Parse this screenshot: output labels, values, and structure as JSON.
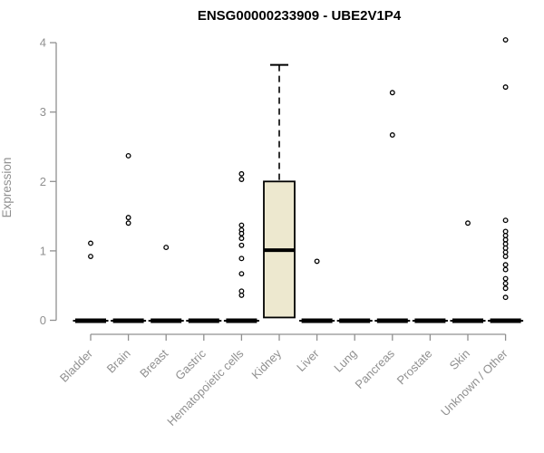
{
  "chart_data": {
    "type": "boxplot",
    "title": "ENSG00000233909 - UBE2V1P4",
    "ylabel": "Expression",
    "xlabel": "",
    "ylim": [
      0,
      4
    ],
    "yticks": [
      0,
      1,
      2,
      3,
      4
    ],
    "grid": false,
    "legend": "none",
    "categories": [
      "Bladder",
      "Brain",
      "Breast",
      "Gastric",
      "Hematopoietic cells",
      "Kidney",
      "Liver",
      "Lung",
      "Pancreas",
      "Prostate",
      "Skin",
      "Unknown / Other"
    ],
    "boxes": [
      {
        "category": "Bladder",
        "q1": 0,
        "median": 0,
        "q3": 0,
        "whisker_low": 0,
        "whisker_high": 0,
        "outliers": [
          1.11,
          0.92
        ]
      },
      {
        "category": "Brain",
        "q1": 0,
        "median": 0,
        "q3": 0,
        "whisker_low": 0,
        "whisker_high": 0,
        "outliers": [
          2.37,
          1.48,
          1.4
        ]
      },
      {
        "category": "Breast",
        "q1": 0,
        "median": 0,
        "q3": 0,
        "whisker_low": 0,
        "whisker_high": 0,
        "outliers": [
          1.05
        ]
      },
      {
        "category": "Gastric",
        "q1": 0,
        "median": 0,
        "q3": 0,
        "whisker_low": 0,
        "whisker_high": 0,
        "outliers": []
      },
      {
        "category": "Hematopoietic cells",
        "q1": 0,
        "median": 0,
        "q3": 0,
        "whisker_low": 0,
        "whisker_high": 0,
        "outliers": [
          2.11,
          2.03,
          1.37,
          1.3,
          1.25,
          1.18,
          1.08,
          0.89,
          0.67,
          0.42,
          0.36
        ]
      },
      {
        "category": "Kidney",
        "q1": 0.04,
        "median": 1.01,
        "q3": 2.0,
        "whisker_low": 0.04,
        "whisker_high": 3.68,
        "outliers": []
      },
      {
        "category": "Liver",
        "q1": 0,
        "median": 0,
        "q3": 0,
        "whisker_low": 0,
        "whisker_high": 0,
        "outliers": [
          0.85
        ]
      },
      {
        "category": "Lung",
        "q1": 0,
        "median": 0,
        "q3": 0,
        "whisker_low": 0,
        "whisker_high": 0,
        "outliers": []
      },
      {
        "category": "Pancreas",
        "q1": 0,
        "median": 0,
        "q3": 0,
        "whisker_low": 0,
        "whisker_high": 0,
        "outliers": [
          3.28,
          2.67
        ]
      },
      {
        "category": "Prostate",
        "q1": 0,
        "median": 0,
        "q3": 0,
        "whisker_low": 0,
        "whisker_high": 0,
        "outliers": []
      },
      {
        "category": "Skin",
        "q1": 0,
        "median": 0,
        "q3": 0,
        "whisker_low": 0,
        "whisker_high": 0,
        "outliers": [
          1.4
        ]
      },
      {
        "category": "Unknown / Other",
        "q1": 0,
        "median": 0,
        "q3": 0,
        "whisker_low": 0,
        "whisker_high": 0,
        "outliers": [
          4.04,
          3.36,
          1.44,
          1.28,
          1.22,
          1.16,
          1.1,
          1.04,
          0.98,
          0.92,
          0.8,
          0.73,
          0.6,
          0.53,
          0.46,
          0.33
        ]
      }
    ],
    "colors": {
      "box_fill": "#EDE8CF",
      "box_stroke": "#000000",
      "median": "#000000",
      "outlier_stroke": "#000000",
      "outlier_fill": "#ffffff",
      "axis": "#909090",
      "tick_label": "#909090",
      "title": "#000000",
      "background": "#ffffff"
    }
  }
}
